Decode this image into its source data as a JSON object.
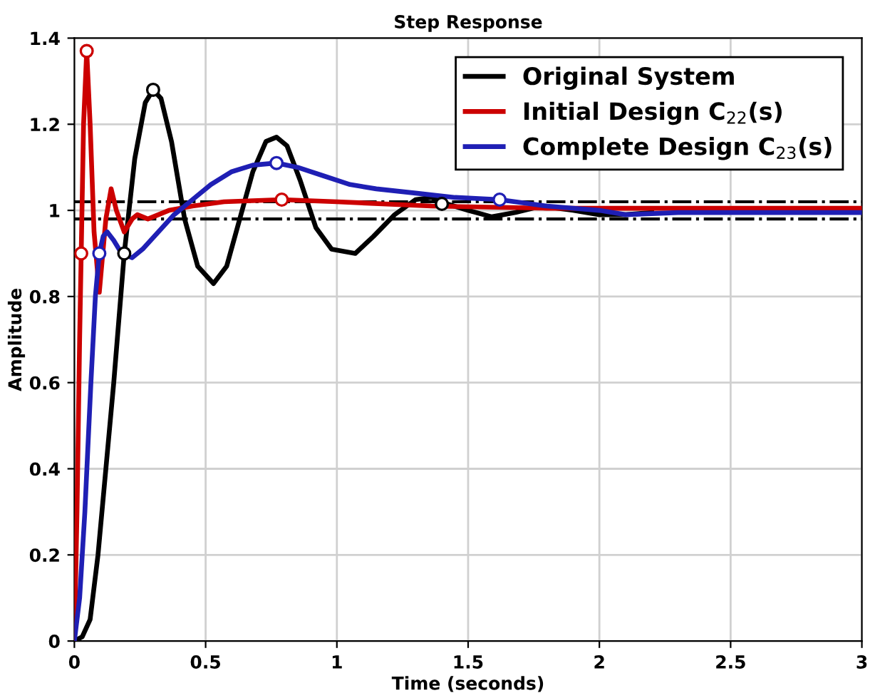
{
  "chart_data": {
    "type": "line",
    "title": "Step Response",
    "xlabel": "Time (seconds)",
    "ylabel": "Amplitude",
    "xlim": [
      0,
      3
    ],
    "ylim": [
      0,
      1.4
    ],
    "xticks": [
      0,
      0.5,
      1,
      1.5,
      2,
      2.5,
      3
    ],
    "yticks": [
      0,
      0.2,
      0.4,
      0.6,
      0.8,
      1,
      1.2,
      1.4
    ],
    "grid": true,
    "legend": "top right",
    "line_style": "solid",
    "ref_lines": [
      {
        "axis": "y",
        "value": 1.02,
        "color": "#000000",
        "line_style": "dashed"
      },
      {
        "axis": "y",
        "value": 0.98,
        "color": "#000000",
        "line_style": "dashed"
      }
    ],
    "series": [
      {
        "name": "Original System",
        "color": "#000000",
        "x": [
          0,
          0.03,
          0.06,
          0.09,
          0.12,
          0.15,
          0.19,
          0.23,
          0.27,
          0.3,
          0.33,
          0.37,
          0.42,
          0.47,
          0.53,
          0.58,
          0.63,
          0.68,
          0.73,
          0.77,
          0.81,
          0.86,
          0.92,
          0.98,
          1.07,
          1.14,
          1.22,
          1.3,
          1.36,
          1.42,
          1.5,
          1.59,
          1.68,
          1.78,
          1.9,
          2.0,
          2.1,
          2.2
        ],
        "values": [
          0,
          0.01,
          0.05,
          0.2,
          0.4,
          0.6,
          0.9,
          1.12,
          1.25,
          1.28,
          1.26,
          1.16,
          0.98,
          0.87,
          0.83,
          0.87,
          0.98,
          1.09,
          1.16,
          1.17,
          1.15,
          1.07,
          0.96,
          0.91,
          0.9,
          0.94,
          0.99,
          1.025,
          1.03,
          1.015,
          1.0,
          0.985,
          0.995,
          1.01,
          1.0,
          0.99,
          0.99,
          0.995
        ]
      },
      {
        "name": "Initial Design C$_{22}$(s)",
        "color": "#cc0000",
        "x": [
          0,
          0.01,
          0.02,
          0.026,
          0.035,
          0.047,
          0.06,
          0.075,
          0.095,
          0.12,
          0.14,
          0.16,
          0.19,
          0.22,
          0.24,
          0.28,
          0.32,
          0.36,
          0.45,
          0.57,
          0.79,
          1.0,
          1.36,
          1.8,
          2.4,
          3.0
        ],
        "values": [
          0,
          0.3,
          0.7,
          0.9,
          1.2,
          1.37,
          1.2,
          0.95,
          0.81,
          0.98,
          1.05,
          1.0,
          0.95,
          0.98,
          0.99,
          0.98,
          0.99,
          1.0,
          1.01,
          1.02,
          1.025,
          1.02,
          1.01,
          1.005,
          1.005,
          1.005
        ]
      },
      {
        "name": "Complete Design C$_{23}$(s)",
        "color": "#1f1fb4",
        "x": [
          0,
          0.02,
          0.04,
          0.063,
          0.08,
          0.095,
          0.11,
          0.125,
          0.15,
          0.18,
          0.22,
          0.26,
          0.32,
          0.38,
          0.44,
          0.52,
          0.6,
          0.68,
          0.77,
          0.85,
          0.95,
          1.05,
          1.15,
          1.3,
          1.45,
          1.62,
          1.8,
          2.0,
          2.1,
          2.3,
          2.6,
          3.0
        ],
        "values": [
          0,
          0.1,
          0.3,
          0.6,
          0.8,
          0.9,
          0.94,
          0.95,
          0.93,
          0.9,
          0.89,
          0.91,
          0.95,
          0.99,
          1.02,
          1.06,
          1.09,
          1.105,
          1.11,
          1.1,
          1.08,
          1.06,
          1.05,
          1.04,
          1.03,
          1.025,
          1.01,
          1.0,
          0.99,
          0.995,
          0.995,
          0.995
        ]
      },
      {
        "type": "scatter",
        "marker": "circle",
        "color": "#000000",
        "x": [
          0.19,
          0.3,
          1.4
        ],
        "values": [
          0.9,
          1.28,
          1.015
        ]
      },
      {
        "type": "scatter",
        "marker": "circle",
        "color": "#cc0000",
        "x": [
          0.026,
          0.047,
          0.79
        ],
        "values": [
          0.9,
          1.37,
          1.025
        ]
      },
      {
        "type": "scatter",
        "marker": "circle",
        "color": "#1f1fb4",
        "x": [
          0.095,
          0.77,
          1.62
        ],
        "values": [
          0.9,
          1.11,
          1.025
        ]
      }
    ]
  }
}
